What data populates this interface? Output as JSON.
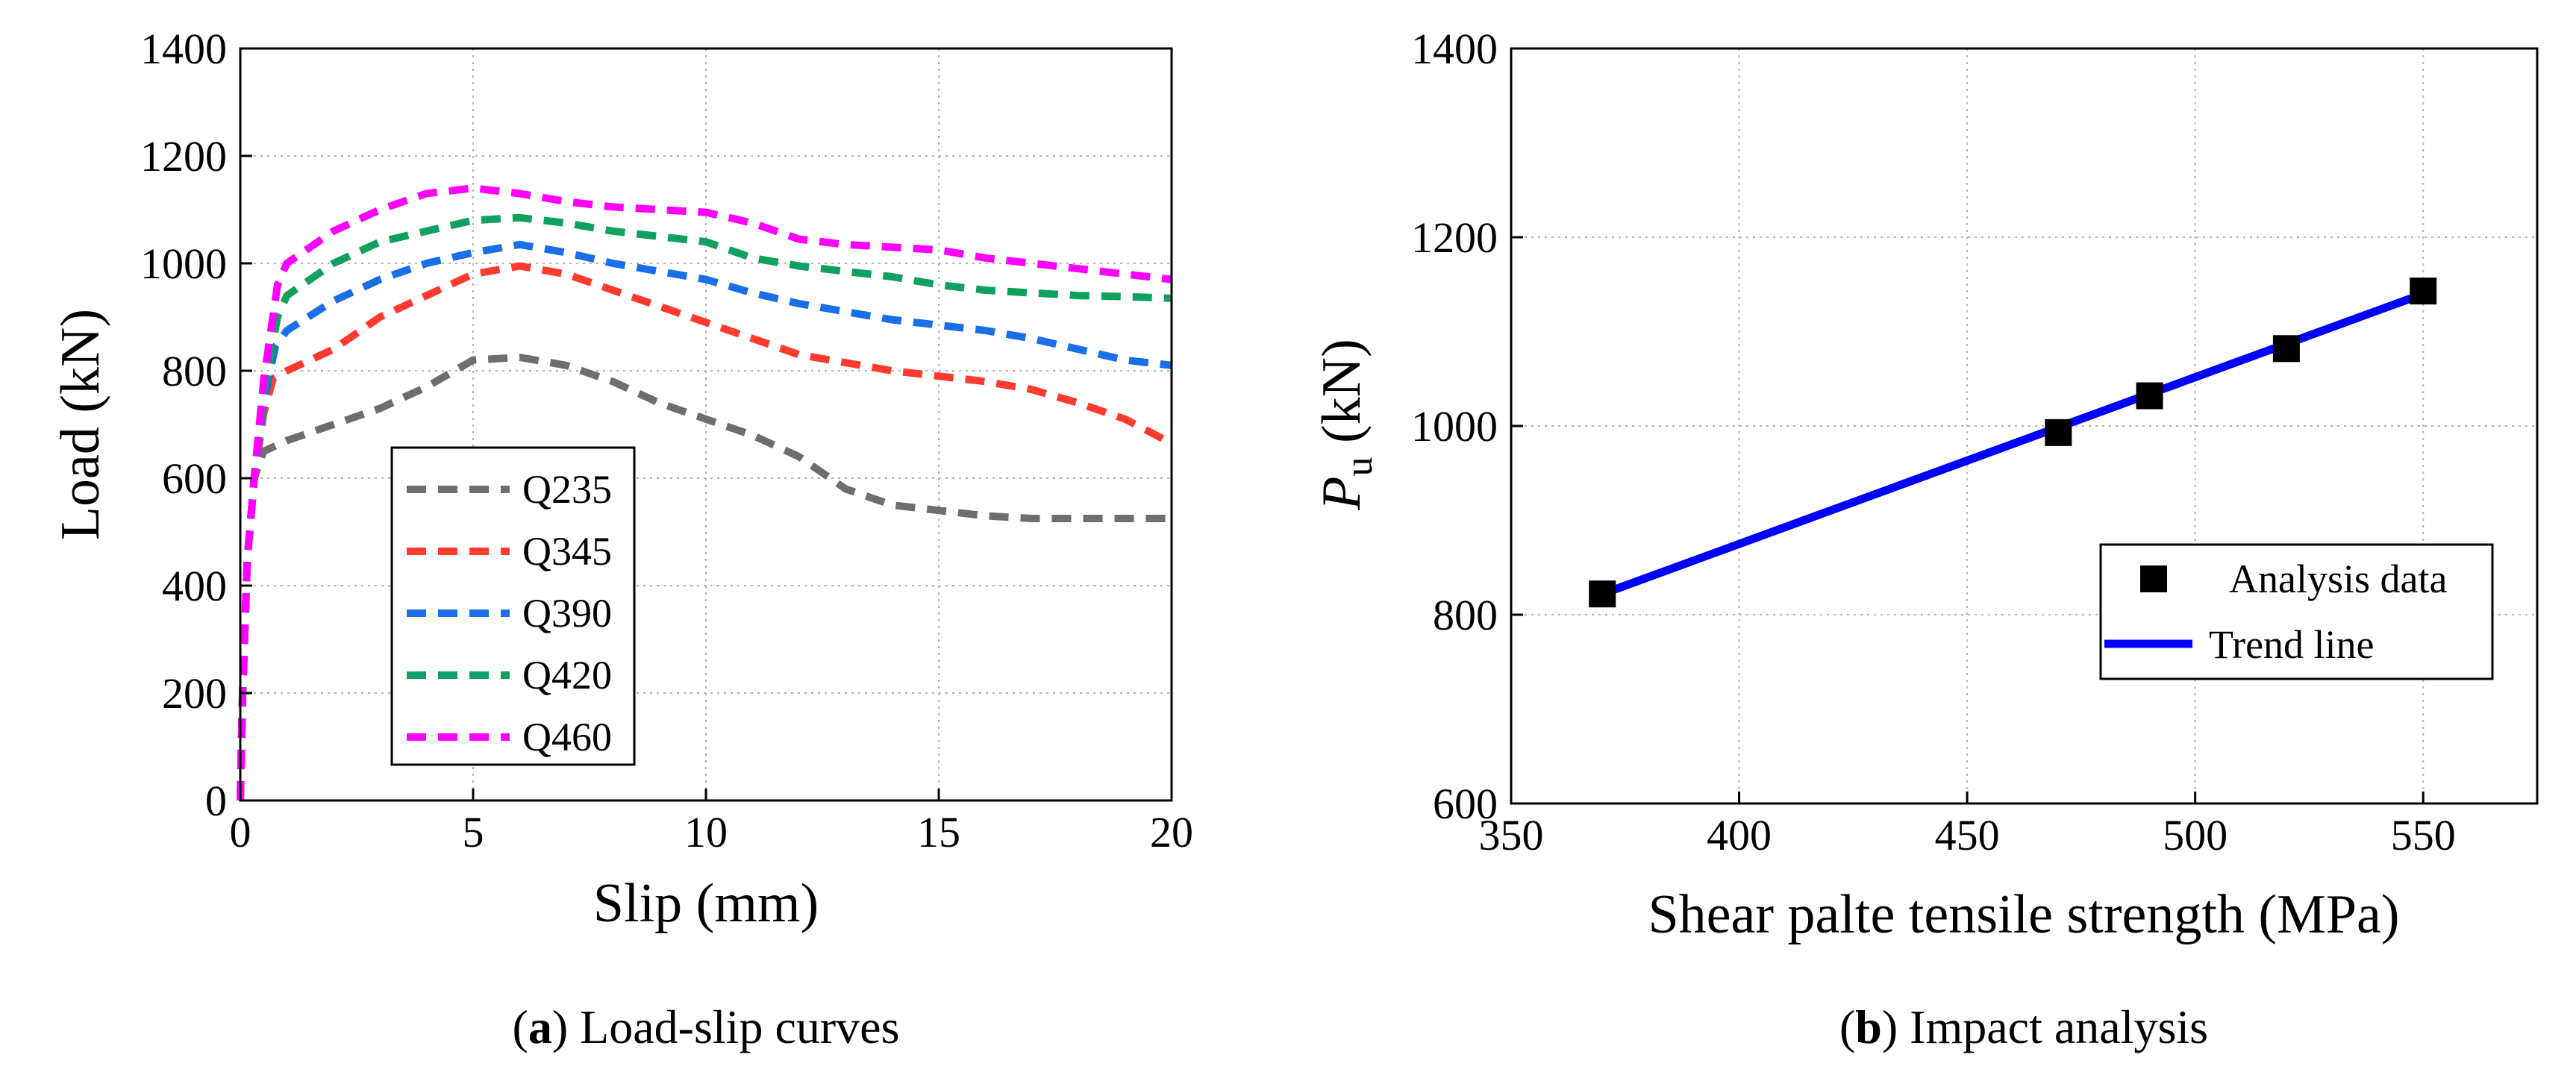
{
  "chart_data": [
    {
      "type": "line",
      "caption_label": "a",
      "caption_text": "Load-slip curves",
      "xlabel": "Slip (mm)",
      "ylabel": "Load (kN)",
      "xlim": [
        0,
        20
      ],
      "ylim": [
        0,
        1400
      ],
      "xticks": [
        0,
        5,
        10,
        15,
        20
      ],
      "yticks": [
        0,
        200,
        400,
        600,
        800,
        1000,
        1200,
        1400
      ],
      "grid": true,
      "legend_position": "bottom-left",
      "line_style": "dashed",
      "series": [
        {
          "name": "Q235",
          "color": "#6e6e6e",
          "points": [
            [
              0,
              0
            ],
            [
              0.05,
              200
            ],
            [
              0.15,
              450
            ],
            [
              0.3,
              600
            ],
            [
              0.5,
              650
            ],
            [
              1,
              670
            ],
            [
              2,
              700
            ],
            [
              3,
              730
            ],
            [
              4,
              770
            ],
            [
              5,
              820
            ],
            [
              6,
              825
            ],
            [
              7,
              810
            ],
            [
              8,
              780
            ],
            [
              9,
              740
            ],
            [
              10,
              710
            ],
            [
              11,
              680
            ],
            [
              12,
              640
            ],
            [
              13,
              580
            ],
            [
              14,
              550
            ],
            [
              15,
              540
            ],
            [
              16,
              530
            ],
            [
              17,
              525
            ],
            [
              18,
              525
            ],
            [
              19,
              525
            ],
            [
              20,
              525
            ]
          ]
        },
        {
          "name": "Q345",
          "color": "#ff3b30",
          "points": [
            [
              0,
              0
            ],
            [
              0.05,
              200
            ],
            [
              0.15,
              450
            ],
            [
              0.3,
              600
            ],
            [
              0.5,
              720
            ],
            [
              0.7,
              785
            ],
            [
              1,
              800
            ],
            [
              2,
              840
            ],
            [
              3,
              900
            ],
            [
              4,
              940
            ],
            [
              5,
              980
            ],
            [
              6,
              995
            ],
            [
              7,
              980
            ],
            [
              8,
              950
            ],
            [
              9,
              920
            ],
            [
              10,
              890
            ],
            [
              11,
              860
            ],
            [
              12,
              830
            ],
            [
              13,
              815
            ],
            [
              14,
              800
            ],
            [
              15,
              790
            ],
            [
              16,
              780
            ],
            [
              17,
              765
            ],
            [
              18,
              740
            ],
            [
              19,
              710
            ],
            [
              20,
              665
            ]
          ]
        },
        {
          "name": "Q390",
          "color": "#1a6fe8",
          "points": [
            [
              0,
              0
            ],
            [
              0.05,
              200
            ],
            [
              0.15,
              450
            ],
            [
              0.3,
              600
            ],
            [
              0.5,
              740
            ],
            [
              0.75,
              845
            ],
            [
              1,
              875
            ],
            [
              2,
              930
            ],
            [
              3,
              970
            ],
            [
              4,
              1000
            ],
            [
              5,
              1020
            ],
            [
              6,
              1035
            ],
            [
              7,
              1020
            ],
            [
              8,
              1000
            ],
            [
              9,
              985
            ],
            [
              10,
              970
            ],
            [
              11,
              945
            ],
            [
              12,
              925
            ],
            [
              13,
              910
            ],
            [
              14,
              895
            ],
            [
              15,
              885
            ],
            [
              16,
              875
            ],
            [
              17,
              860
            ],
            [
              18,
              840
            ],
            [
              19,
              820
            ],
            [
              20,
              810
            ]
          ]
        },
        {
          "name": "Q420",
          "color": "#10a060",
          "points": [
            [
              0,
              0
            ],
            [
              0.05,
              200
            ],
            [
              0.15,
              450
            ],
            [
              0.3,
              600
            ],
            [
              0.5,
              760
            ],
            [
              0.8,
              900
            ],
            [
              1,
              940
            ],
            [
              2,
              1000
            ],
            [
              3,
              1040
            ],
            [
              4,
              1060
            ],
            [
              5,
              1080
            ],
            [
              6,
              1085
            ],
            [
              7,
              1075
            ],
            [
              8,
              1060
            ],
            [
              9,
              1050
            ],
            [
              10,
              1040
            ],
            [
              11,
              1010
            ],
            [
              12,
              995
            ],
            [
              13,
              985
            ],
            [
              14,
              975
            ],
            [
              15,
              960
            ],
            [
              16,
              950
            ],
            [
              17,
              945
            ],
            [
              18,
              940
            ],
            [
              19,
              938
            ],
            [
              20,
              935
            ]
          ]
        },
        {
          "name": "Q460",
          "color": "#ff00ff",
          "points": [
            [
              0,
              0
            ],
            [
              0.05,
              200
            ],
            [
              0.15,
              450
            ],
            [
              0.3,
              600
            ],
            [
              0.5,
              780
            ],
            [
              0.8,
              960
            ],
            [
              1,
              1000
            ],
            [
              2,
              1060
            ],
            [
              3,
              1100
            ],
            [
              4,
              1130
            ],
            [
              5,
              1140
            ],
            [
              6,
              1130
            ],
            [
              7,
              1115
            ],
            [
              8,
              1105
            ],
            [
              9,
              1100
            ],
            [
              10,
              1095
            ],
            [
              11,
              1075
            ],
            [
              12,
              1045
            ],
            [
              13,
              1035
            ],
            [
              14,
              1030
            ],
            [
              15,
              1025
            ],
            [
              16,
              1010
            ],
            [
              17,
              1000
            ],
            [
              18,
              990
            ],
            [
              19,
              980
            ],
            [
              20,
              970
            ]
          ]
        }
      ]
    },
    {
      "type": "scatter",
      "caption_label": "b",
      "caption_text": "Impact analysis",
      "xlabel": "Shear palte tensile strength (MPa)",
      "ylabel_main": "P",
      "ylabel_sub": "u",
      "ylabel_rest": " (kN)",
      "xlim": [
        350,
        575
      ],
      "ylim": [
        600,
        1400
      ],
      "xticks": [
        350,
        400,
        450,
        500,
        550
      ],
      "yticks": [
        600,
        800,
        1000,
        1200,
        1400
      ],
      "grid": true,
      "legend_position": "bottom-right",
      "series": [
        {
          "name": "Analysis data",
          "kind": "marker",
          "color": "#000000",
          "x": [
            370,
            470,
            490,
            520,
            550
          ],
          "y": [
            822,
            993,
            1032,
            1082,
            1143
          ]
        },
        {
          "name": "Trend line",
          "kind": "line",
          "color": "#0000ff",
          "x": [
            370,
            550
          ],
          "y": [
            822,
            1140
          ]
        }
      ]
    }
  ]
}
